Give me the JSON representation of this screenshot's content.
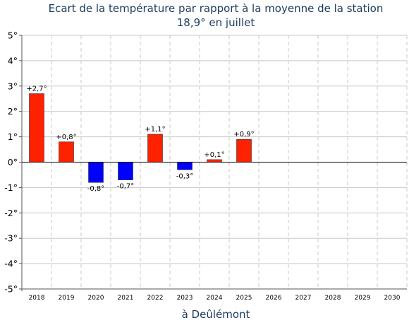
{
  "chart_data": {
    "type": "bar",
    "title": "Ecart de la température par rapport à la moyenne de la station",
    "subtitle": "18,9° en juillet",
    "xlabel": "à Deûlémont",
    "ylabel": "",
    "ylim": [
      -5,
      5
    ],
    "yticks": [
      "5°",
      "4°",
      "3°",
      "2°",
      "1°",
      "0°",
      "-1°",
      "-2°",
      "-3°",
      "-4°",
      "-5°"
    ],
    "categories": [
      "2018",
      "2019",
      "2020",
      "2021",
      "2022",
      "2023",
      "2024",
      "2025",
      "2026",
      "2027",
      "2028",
      "2029",
      "2030"
    ],
    "values": [
      2.7,
      0.8,
      -0.8,
      -0.7,
      1.1,
      -0.3,
      0.1,
      0.9,
      null,
      null,
      null,
      null,
      null
    ],
    "data_labels": [
      "+2,7°",
      "+0,8°",
      "-0,8°",
      "-0,7°",
      "+1,1°",
      "-0,3°",
      "+0,1°",
      "+0,9°",
      "",
      "",
      "",
      "",
      ""
    ],
    "grid": true,
    "colors": {
      "positive": "#ff2200",
      "negative": "#0000ff",
      "title": "#1a3a5c"
    }
  }
}
